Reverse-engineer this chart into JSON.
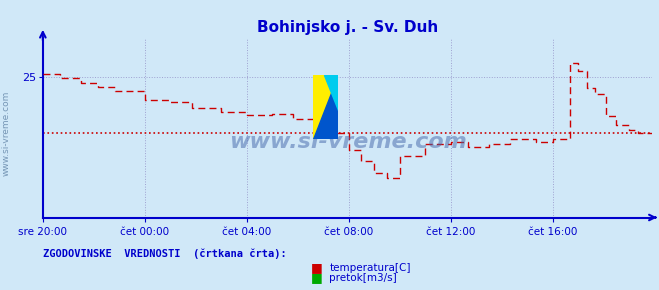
{
  "title": "Bohinjsko j. - Sv. Duh",
  "title_color": "#0000cc",
  "title_fontsize": 11,
  "bg_color": "#d0e8f8",
  "plot_bg_color": "#d0e8f8",
  "axis_color": "#0000cc",
  "grid_color": "#9999cc",
  "text_color": "#0000cc",
  "watermark_text": "www.si-vreme.com",
  "yticks": [
    25
  ],
  "ylim": [
    0,
    32
  ],
  "xlim": [
    0,
    287
  ],
  "xtick_labels": [
    "sre 20:00",
    "čet 00:00",
    "čet 04:00",
    "čet 08:00",
    "čet 12:00",
    "čet 16:00"
  ],
  "xtick_positions": [
    0,
    48,
    96,
    144,
    192,
    240
  ],
  "legend_label1": "temperatura[C]",
  "legend_label2": "pretok[m3/s]",
  "legend_color1": "#cc0000",
  "legend_color2": "#00aa00",
  "footer_text": "ZGODOVINSKE  VREDNOSTI  (črtkana črta):",
  "footer_color": "#0000cc",
  "line_color": "#cc0000",
  "hist_value": 15.0,
  "temp_breakpoints": [
    8,
    18,
    26,
    34,
    48,
    60,
    70,
    84,
    96,
    108,
    118,
    128,
    138,
    144,
    150,
    156,
    162,
    168,
    180,
    192,
    200,
    210,
    220,
    232,
    240,
    248,
    252,
    256,
    260,
    265,
    270,
    276,
    280,
    287
  ],
  "temp_values": [
    25.5,
    24.8,
    24.0,
    23.2,
    22.5,
    21.0,
    20.5,
    19.5,
    18.8,
    18.2,
    18.5,
    17.5,
    17.0,
    15.0,
    12.0,
    10.0,
    8.0,
    7.0,
    11.0,
    13.0,
    13.5,
    12.5,
    13.0,
    14.0,
    13.5,
    14.0,
    27.5,
    26.0,
    23.0,
    22.0,
    18.0,
    16.5,
    15.5,
    15.0,
    15.0
  ]
}
